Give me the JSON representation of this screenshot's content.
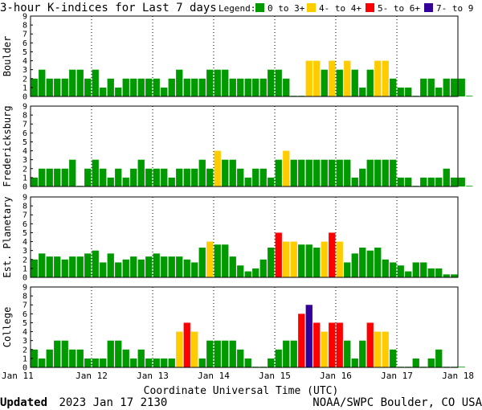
{
  "title": "3-hour K-indices for Last 7 days",
  "legend": {
    "label": "Legend:",
    "items": [
      {
        "label": "0 to 3+",
        "color": "#009900"
      },
      {
        "label": "4- to 4+",
        "color": "#FFCC00"
      },
      {
        "label": "5- to 6+",
        "color": "#FF0000"
      },
      {
        "label": "7- to 9",
        "color": "#330099"
      }
    ]
  },
  "xlabel": "Coordinate Universal Time (UTC)",
  "footer": {
    "updated_label": "Updated",
    "updated_value": "2023 Jan 17 2130",
    "source": "NOAA/SWPC Boulder, CO USA"
  },
  "chart_data": {
    "type": "bar",
    "x_tick_labels": [
      "Jan 11",
      "Jan 12",
      "Jan 13",
      "Jan 14",
      "Jan 15",
      "Jan 16",
      "Jan 17",
      "Jan 18"
    ],
    "y_tick_labels": [
      "0",
      "1",
      "2",
      "3",
      "4",
      "5",
      "6",
      "7",
      "8",
      "9"
    ],
    "ylim": [
      0,
      9
    ],
    "bars_per_day": 8,
    "color_scale": [
      {
        "min": 0,
        "max": 3.67,
        "color": "#009900"
      },
      {
        "min": 3.67,
        "max": 4.67,
        "color": "#FFCC00"
      },
      {
        "min": 4.67,
        "max": 6.67,
        "color": "#FF0000"
      },
      {
        "min": 6.67,
        "max": 9,
        "color": "#330099"
      }
    ],
    "series": [
      {
        "name": "Boulder",
        "values": [
          2,
          3,
          2,
          2,
          2,
          3,
          3,
          2,
          3,
          1,
          2,
          1,
          2,
          2,
          2,
          2,
          2,
          1,
          2,
          3,
          2,
          2,
          2,
          3,
          3,
          3,
          2,
          2,
          2,
          2,
          2,
          3,
          3,
          2,
          0,
          0,
          4,
          4,
          3,
          4,
          3,
          4,
          3,
          1,
          3,
          4,
          4,
          2,
          1,
          1,
          0,
          2,
          2,
          1,
          2,
          2,
          2,
          0
        ]
      },
      {
        "name": "Fredericksburg",
        "values": [
          1,
          2,
          2,
          2,
          2,
          3,
          0,
          2,
          3,
          2,
          1,
          2,
          1,
          2,
          3,
          2,
          2,
          2,
          1,
          2,
          2,
          2,
          3,
          2,
          4,
          3,
          3,
          2,
          1,
          2,
          2,
          1,
          3,
          4,
          3,
          3,
          3,
          3,
          3,
          3,
          3,
          3,
          1,
          2,
          3,
          3,
          3,
          3,
          1,
          1,
          0,
          1,
          1,
          1,
          2,
          1,
          1,
          0
        ]
      },
      {
        "name": "Est. Planetary",
        "values": [
          2,
          2.67,
          2.33,
          2.33,
          2,
          2.33,
          2.33,
          2.67,
          3,
          1.67,
          2.67,
          1.67,
          2,
          2.33,
          2,
          2.33,
          2.67,
          2.33,
          2.33,
          2.33,
          2,
          1.67,
          3.33,
          4,
          3.67,
          3.67,
          2.33,
          1.33,
          0.67,
          1,
          2,
          3.33,
          5,
          4,
          4,
          3.67,
          3.67,
          3.33,
          4,
          5,
          4,
          1.67,
          2.67,
          3.33,
          3,
          3.33,
          2,
          1.67,
          1.33,
          0.67,
          1.67,
          1.67,
          1,
          1,
          0.33,
          0.33
        ]
      },
      {
        "name": "College",
        "values": [
          2,
          1,
          2,
          3,
          3,
          2,
          2,
          1,
          1,
          1,
          3,
          3,
          2,
          1,
          2,
          1,
          1,
          1,
          1,
          4,
          5,
          4,
          1,
          3,
          3,
          3,
          3,
          2,
          1,
          0,
          0,
          1,
          2,
          3,
          3,
          6,
          7,
          5,
          4,
          5,
          5,
          3,
          1,
          3,
          5,
          4,
          4,
          2,
          0,
          0,
          1,
          0,
          1,
          2,
          0,
          0,
          0
        ]
      }
    ]
  }
}
